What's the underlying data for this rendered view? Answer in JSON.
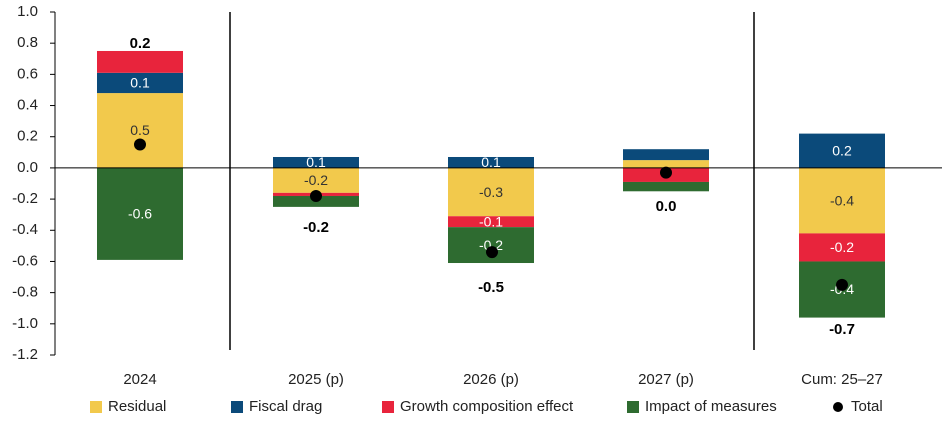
{
  "chart_data": {
    "type": "bar",
    "stacked": true,
    "categories": [
      "2024",
      "2025 (p)",
      "2026 (p)",
      "2027 (p)",
      "Cum: 25–27"
    ],
    "ylim": [
      -1.2,
      1.0
    ],
    "yticks": [
      "1.0",
      "0.8",
      "0.6",
      "0.4",
      "0.2",
      "0.0",
      "-0.2",
      "-0.4",
      "-0.6",
      "-0.8",
      "-1.0",
      "-1.2"
    ],
    "series": [
      {
        "name": "Residual",
        "color": "#F2C94C",
        "labelColor": "#333333",
        "values": [
          0.48,
          -0.16,
          -0.31,
          0.05,
          -0.42
        ],
        "labels": [
          "0.5",
          "-0.2",
          "-0.3",
          "",
          "-0.4"
        ]
      },
      {
        "name": "Fiscal drag",
        "color": "#0B4A7A",
        "labelColor": "#ffffff",
        "values": [
          0.13,
          0.07,
          0.07,
          0.07,
          0.22
        ],
        "labels": [
          "0.1",
          "0.1",
          "0.1",
          "",
          "0.2"
        ]
      },
      {
        "name": "Growth composition effect",
        "color": "#E8243C",
        "labelColor": "#ffffff",
        "values": [
          0.14,
          -0.02,
          -0.07,
          -0.09,
          -0.18
        ],
        "labels": [
          "",
          "",
          "-0.1",
          "",
          "-0.2"
        ]
      },
      {
        "name": "Impact of measures",
        "color": "#2E6B30",
        "labelColor": "#ffffff",
        "values": [
          -0.59,
          -0.07,
          -0.23,
          -0.06,
          -0.36
        ],
        "labels": [
          "-0.6",
          "",
          "-0.2",
          "",
          "-0.4"
        ]
      }
    ],
    "total": {
      "name": "Total",
      "values": [
        0.15,
        -0.18,
        -0.54,
        -0.03,
        -0.75
      ],
      "labels": [
        "0.2",
        "-0.2",
        "-0.5",
        "0.0",
        "-0.7"
      ]
    },
    "grid": false,
    "legend_position": "bottom"
  },
  "legend": {
    "residual": "Residual",
    "fiscal_drag": "Fiscal drag",
    "growth": "Growth composition effect",
    "measures": "Impact of measures",
    "total": "Total"
  }
}
